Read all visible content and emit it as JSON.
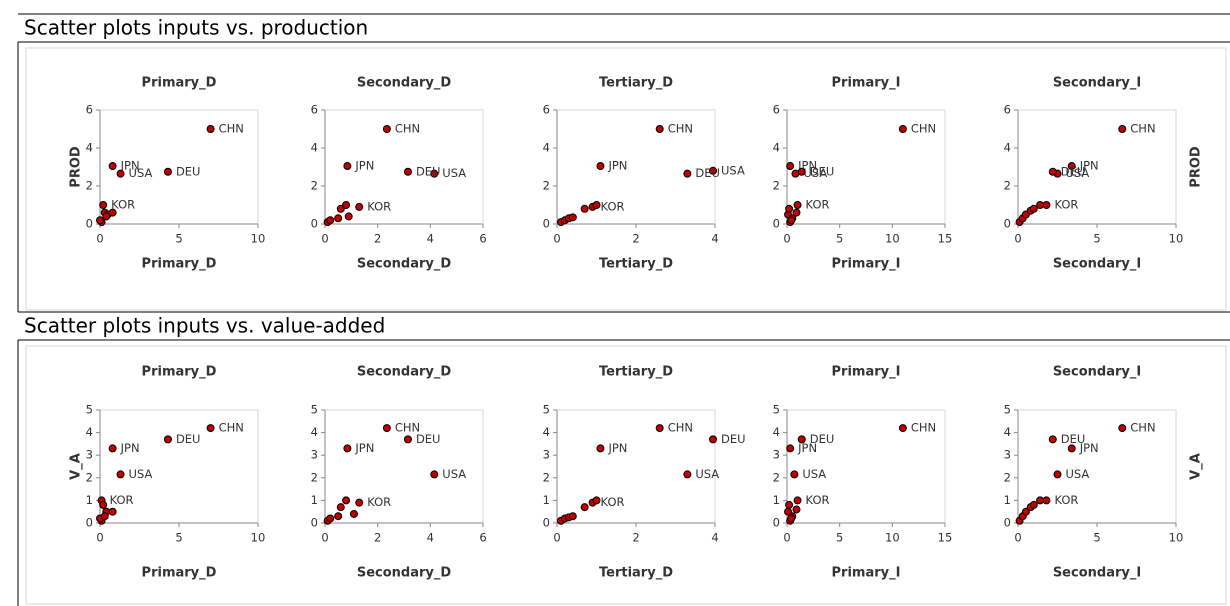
{
  "headings": [
    "Scatter plots inputs vs. production",
    "Scatter plots inputs vs. value-added"
  ],
  "chart_data": [
    {
      "type": "scatter",
      "title": "Primary_D",
      "x_label": "Primary_D",
      "y_label": "PROD",
      "color": "#c00000",
      "xlim": [
        0,
        10
      ],
      "xticks": [
        0,
        5,
        10
      ],
      "ylim": [
        0,
        6
      ],
      "yticks": [
        0,
        2,
        4,
        6
      ],
      "x": [
        7.0,
        0.8,
        1.3,
        4.3,
        0.2,
        0.1,
        0.3,
        0.5,
        0.8,
        0.0,
        0.4
      ],
      "values": [
        5.0,
        3.05,
        2.65,
        2.75,
        1.0,
        0.1,
        0.6,
        0.5,
        0.6,
        0.2,
        0.4
      ],
      "point_labels": [
        "CHN",
        "JPN",
        "USA",
        "DEU",
        "KOR",
        null,
        null,
        null,
        null,
        null,
        null
      ]
    },
    {
      "type": "scatter",
      "title": "Secondary_D",
      "x_label": "Secondary_D",
      "color": "#c00000",
      "xlim": [
        0,
        6
      ],
      "xticks": [
        0,
        2,
        4,
        6
      ],
      "ylim": [
        0,
        6
      ],
      "yticks": [
        0,
        2,
        4,
        6
      ],
      "x": [
        2.35,
        0.85,
        4.15,
        3.15,
        1.3,
        0.1,
        0.2,
        0.5,
        0.6,
        0.8,
        0.9
      ],
      "values": [
        5.0,
        3.05,
        2.65,
        2.75,
        0.9,
        0.1,
        0.2,
        0.3,
        0.8,
        1.0,
        0.4
      ],
      "point_labels": [
        "CHN",
        "JPN",
        "USA",
        "DEU",
        "KOR",
        null,
        null,
        null,
        null,
        null,
        null
      ]
    },
    {
      "type": "scatter",
      "title": "Tertiary_D",
      "x_label": "Tertiary_D",
      "color": "#c00000",
      "xlim": [
        0,
        4
      ],
      "xticks": [
        0,
        2,
        4
      ],
      "ylim": [
        0,
        6
      ],
      "yticks": [
        0,
        2,
        4,
        6
      ],
      "x": [
        2.6,
        1.1,
        3.95,
        3.3,
        0.9,
        0.1,
        0.2,
        0.3,
        0.4,
        0.7,
        1.0
      ],
      "values": [
        5.0,
        3.05,
        2.8,
        2.65,
        0.9,
        0.1,
        0.2,
        0.3,
        0.35,
        0.8,
        1.0
      ],
      "point_labels": [
        "CHN",
        "JPN",
        "USA",
        "DEU",
        "KOR",
        null,
        null,
        null,
        null,
        null,
        null
      ]
    },
    {
      "type": "scatter",
      "title": "Primary_I",
      "x_label": "Primary_I",
      "color": "#c00000",
      "xlim": [
        0,
        15
      ],
      "xticks": [
        0,
        5,
        10,
        15
      ],
      "ylim": [
        0,
        6
      ],
      "yticks": [
        0,
        2,
        4,
        6
      ],
      "x": [
        11.0,
        0.3,
        0.8,
        1.4,
        1.0,
        0.1,
        0.2,
        0.3,
        0.5,
        0.9,
        0.4
      ],
      "values": [
        5.0,
        3.05,
        2.65,
        2.75,
        1.0,
        0.5,
        0.8,
        0.1,
        0.3,
        0.6,
        0.2
      ],
      "point_labels": [
        "CHN",
        "JPN",
        "USA",
        "DEU",
        "KOR",
        null,
        null,
        null,
        null,
        null,
        null
      ]
    },
    {
      "type": "scatter",
      "title": "Secondary_I",
      "x_label": "Secondary_I",
      "y_label": "PROD",
      "color": "#c00000",
      "xlim": [
        0,
        10
      ],
      "xticks": [
        0,
        5,
        10
      ],
      "ylim": [
        0,
        6
      ],
      "yticks": [
        0,
        2,
        4,
        6
      ],
      "x": [
        6.6,
        3.4,
        2.5,
        2.2,
        1.8,
        0.1,
        0.3,
        0.5,
        0.8,
        1.0,
        1.4
      ],
      "values": [
        5.0,
        3.05,
        2.65,
        2.75,
        1.0,
        0.1,
        0.3,
        0.5,
        0.7,
        0.8,
        1.0
      ],
      "point_labels": [
        "CHN",
        "JPN",
        "USA",
        "DEU",
        "KOR",
        null,
        null,
        null,
        null,
        null,
        null
      ]
    },
    {
      "type": "scatter",
      "title": "Primary_D",
      "x_label": "Primary_D",
      "y_label": "V_A",
      "color": "#c00000",
      "xlim": [
        0,
        10
      ],
      "xticks": [
        0,
        5,
        10
      ],
      "ylim": [
        0,
        5
      ],
      "yticks": [
        0,
        1,
        2,
        3,
        4,
        5
      ],
      "x": [
        7.0,
        0.8,
        1.3,
        4.3,
        0.1,
        0.2,
        0.4,
        0.8,
        0.1,
        0.0,
        0.3
      ],
      "values": [
        4.2,
        3.3,
        2.15,
        3.7,
        1.0,
        0.8,
        0.5,
        0.5,
        0.1,
        0.2,
        0.3
      ],
      "point_labels": [
        "CHN",
        "JPN",
        "USA",
        "DEU",
        "KOR",
        null,
        null,
        null,
        null,
        null,
        null
      ]
    },
    {
      "type": "scatter",
      "title": "Secondary_D",
      "x_label": "Secondary_D",
      "color": "#c00000",
      "xlim": [
        0,
        6
      ],
      "xticks": [
        0,
        2,
        4,
        6
      ],
      "ylim": [
        0,
        5
      ],
      "yticks": [
        0,
        1,
        2,
        3,
        4,
        5
      ],
      "x": [
        2.35,
        0.85,
        4.15,
        3.15,
        1.3,
        0.1,
        0.2,
        0.5,
        0.6,
        0.8,
        1.1
      ],
      "values": [
        4.2,
        3.3,
        2.15,
        3.7,
        0.9,
        0.1,
        0.2,
        0.3,
        0.7,
        1.0,
        0.4
      ],
      "point_labels": [
        "CHN",
        "JPN",
        "USA",
        "DEU",
        "KOR",
        null,
        null,
        null,
        null,
        null,
        null
      ]
    },
    {
      "type": "scatter",
      "title": "Tertiary_D",
      "x_label": "Tertiary_D",
      "color": "#c00000",
      "xlim": [
        0,
        4
      ],
      "xticks": [
        0,
        2,
        4
      ],
      "ylim": [
        0,
        5
      ],
      "yticks": [
        0,
        1,
        2,
        3,
        4,
        5
      ],
      "x": [
        2.6,
        1.1,
        3.3,
        3.95,
        0.9,
        0.1,
        0.2,
        0.3,
        0.4,
        0.7,
        1.0
      ],
      "values": [
        4.2,
        3.3,
        2.15,
        3.7,
        0.9,
        0.1,
        0.2,
        0.25,
        0.3,
        0.7,
        1.0
      ],
      "point_labels": [
        "CHN",
        "JPN",
        "USA",
        "DEU",
        "KOR",
        null,
        null,
        null,
        null,
        null,
        null
      ]
    },
    {
      "type": "scatter",
      "title": "Primary_I",
      "x_label": "Primary_I",
      "color": "#c00000",
      "xlim": [
        0,
        15
      ],
      "xticks": [
        0,
        5,
        10,
        15
      ],
      "ylim": [
        0,
        5
      ],
      "yticks": [
        0,
        1,
        2,
        3,
        4,
        5
      ],
      "x": [
        11.0,
        0.3,
        0.7,
        1.4,
        1.0,
        0.1,
        0.2,
        0.3,
        0.5,
        0.9,
        0.4
      ],
      "values": [
        4.2,
        3.3,
        2.15,
        3.7,
        1.0,
        0.5,
        0.8,
        0.1,
        0.3,
        0.6,
        0.2
      ],
      "point_labels": [
        "CHN",
        "JPN",
        "USA",
        "DEU",
        "KOR",
        null,
        null,
        null,
        null,
        null,
        null
      ]
    },
    {
      "type": "scatter",
      "title": "Secondary_I",
      "x_label": "Secondary_I",
      "y_label": "V_A",
      "color": "#c00000",
      "xlim": [
        0,
        10
      ],
      "xticks": [
        0,
        5,
        10
      ],
      "ylim": [
        0,
        5
      ],
      "yticks": [
        0,
        1,
        2,
        3,
        4,
        5
      ],
      "x": [
        6.6,
        3.4,
        2.5,
        2.2,
        1.8,
        0.1,
        0.3,
        0.5,
        0.8,
        1.0,
        1.4
      ],
      "values": [
        4.2,
        3.3,
        2.15,
        3.7,
        1.0,
        0.1,
        0.3,
        0.5,
        0.7,
        0.8,
        1.0
      ],
      "point_labels": [
        "CHN",
        "JPN",
        "USA",
        "DEU",
        "KOR",
        null,
        null,
        null,
        null,
        null,
        null
      ]
    }
  ]
}
